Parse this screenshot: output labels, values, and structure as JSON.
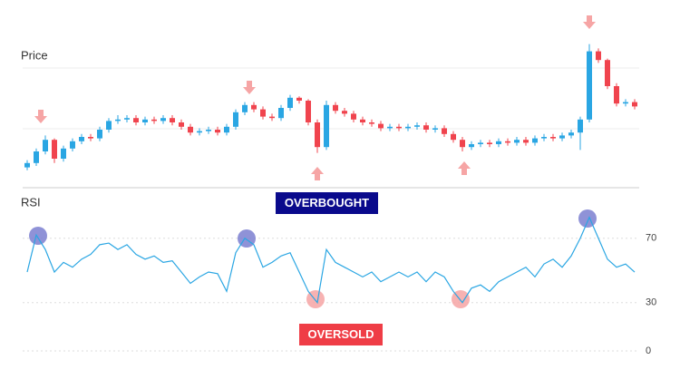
{
  "chart_data": [
    {
      "type": "candlestick",
      "title": "Price",
      "ylim": [
        0,
        100
      ],
      "up_color": "#2aa6e3",
      "down_color": "#f0444e",
      "open": [
        14,
        17,
        25,
        33,
        20,
        27,
        32,
        35,
        34,
        40,
        46,
        47,
        48,
        45,
        47,
        46,
        48,
        45,
        42,
        38,
        39,
        40,
        38,
        42,
        52,
        57,
        54,
        49,
        48,
        55,
        62,
        60,
        45,
        28,
        57,
        53,
        51,
        47,
        45,
        44,
        41,
        42,
        41,
        42,
        43,
        40,
        41,
        37,
        33,
        28,
        30,
        31,
        30,
        32,
        31,
        33,
        31,
        34,
        35,
        34,
        36,
        38,
        47,
        94,
        88,
        70,
        58,
        59
      ],
      "high": [
        19,
        27,
        36,
        34,
        29,
        34,
        37,
        37,
        42,
        48,
        50,
        50,
        50,
        49,
        49,
        50,
        50,
        47,
        44,
        41,
        42,
        42,
        44,
        54,
        59,
        59,
        56,
        51,
        57,
        64,
        63,
        61,
        47,
        60,
        59,
        55,
        53,
        49,
        47,
        46,
        44,
        44,
        44,
        45,
        45,
        43,
        43,
        39,
        35,
        32,
        33,
        33,
        34,
        34,
        35,
        35,
        36,
        37,
        37,
        38,
        40,
        49,
        99,
        96,
        89,
        72,
        61,
        61
      ],
      "low": [
        12,
        15,
        23,
        17,
        18,
        25,
        30,
        32,
        32,
        38,
        44,
        45,
        43,
        43,
        44,
        44,
        43,
        40,
        36,
        36,
        37,
        36,
        36,
        40,
        50,
        52,
        47,
        46,
        46,
        53,
        58,
        43,
        24,
        26,
        51,
        49,
        45,
        43,
        42,
        39,
        39,
        39,
        39,
        40,
        38,
        38,
        35,
        31,
        25,
        26,
        28,
        28,
        28,
        29,
        29,
        29,
        29,
        32,
        32,
        32,
        34,
        26,
        45,
        86,
        68,
        56,
        56,
        54
      ],
      "close": [
        17,
        25,
        33,
        20,
        27,
        32,
        35,
        34,
        40,
        46,
        47,
        48,
        45,
        47,
        46,
        48,
        45,
        42,
        38,
        39,
        40,
        38,
        42,
        52,
        57,
        54,
        49,
        48,
        55,
        62,
        60,
        45,
        28,
        57,
        53,
        51,
        47,
        45,
        44,
        41,
        42,
        41,
        42,
        43,
        40,
        41,
        37,
        33,
        28,
        30,
        31,
        30,
        32,
        31,
        33,
        31,
        34,
        35,
        34,
        36,
        38,
        47,
        94,
        88,
        70,
        58,
        59,
        56
      ]
    },
    {
      "type": "line",
      "title": "RSI",
      "color": "#2aa6e3",
      "ylim": [
        0,
        100
      ],
      "yticks": [
        0,
        30,
        70
      ],
      "grid": true,
      "values": [
        49,
        72,
        63,
        49,
        55,
        52,
        57,
        60,
        66,
        67,
        63,
        66,
        60,
        57,
        59,
        55,
        56,
        49,
        42,
        46,
        49,
        48,
        37,
        61,
        70,
        66,
        52,
        55,
        59,
        61,
        49,
        37,
        30,
        63,
        55,
        52,
        49,
        46,
        49,
        43,
        46,
        49,
        46,
        49,
        43,
        49,
        46,
        37,
        30,
        39,
        41,
        37,
        43,
        46,
        49,
        52,
        46,
        54,
        57,
        52,
        59,
        70,
        83,
        70,
        57,
        52,
        54,
        49
      ],
      "annotations": [
        "OVERBOUGHT",
        "OVERSOLD"
      ]
    }
  ]
}
